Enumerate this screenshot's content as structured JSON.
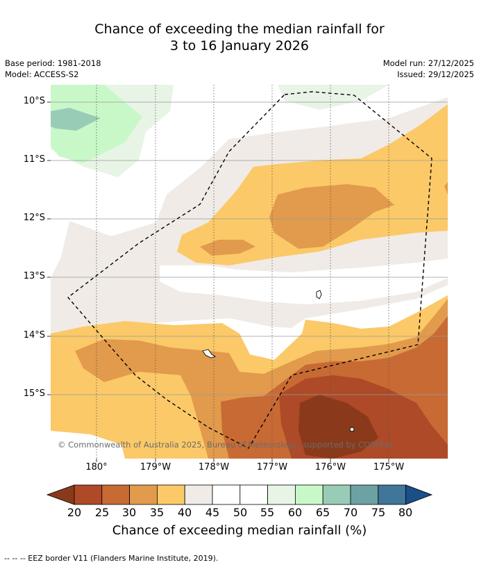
{
  "title": {
    "line1": "Chance of exceeding the median rainfall for",
    "line2": "3 to 16 January 2026"
  },
  "meta": {
    "base_period": "Base period: 1981-2018",
    "model": "Model: ACCESS-S2",
    "model_run": "Model run: 27/12/2025",
    "issued": "Issued: 29/12/2025"
  },
  "map": {
    "lat_labels": [
      "10°S",
      "11°S",
      "12°S",
      "13°S",
      "14°S",
      "15°S"
    ],
    "lon_labels": [
      "180°",
      "179°W",
      "178°W",
      "177°W",
      "176°W",
      "175°W"
    ],
    "copyright": "© Commonwealth of Australia 2025, Bureau of Meteorology, supported by COSPPac",
    "eez_border": "dashed"
  },
  "legend": {
    "ticks": [
      "20",
      "25",
      "30",
      "35",
      "40",
      "45",
      "50",
      "55",
      "60",
      "65",
      "70",
      "75",
      "80"
    ],
    "title": "Chance of exceeding median rainfall (%)",
    "colors": {
      "below20": "#8a3a1a",
      "b20_25": "#ae4a27",
      "b25_30": "#c86a34",
      "b30_35": "#e29a4c",
      "b35_40": "#fbc968",
      "b40_45": "#f0ebe6",
      "b45_50": "#ffffff",
      "b50_55": "#ffffff",
      "b55_60": "#e8f4e6",
      "b60_65": "#c9f8c8",
      "b65_70": "#98ccb7",
      "b70_75": "#6ca2a4",
      "b75_80": "#3f7699",
      "above80": "#1a4f87"
    }
  },
  "footer": {
    "eez_note": "--  --  -- EEZ border V11 (Flanders Marine Institute, 2019)."
  }
}
